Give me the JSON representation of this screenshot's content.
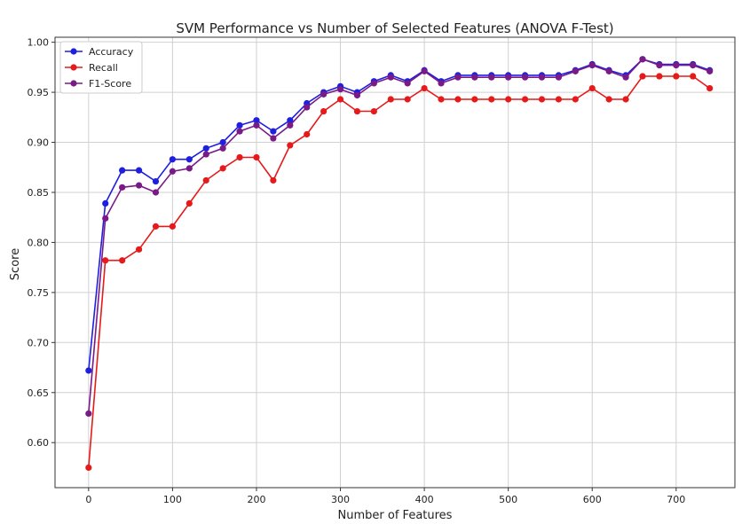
{
  "chart_data": {
    "type": "line",
    "title": "SVM Performance vs Number of Selected Features (ANOVA F-Test)",
    "xlabel": "Number of Features",
    "ylabel": "Score",
    "xlim": [
      -40,
      770
    ],
    "ylim": [
      0.555,
      1.005
    ],
    "xticks": [
      0,
      100,
      200,
      300,
      400,
      500,
      600,
      700
    ],
    "yticks": [
      0.6,
      0.65,
      0.7,
      0.75,
      0.8,
      0.85,
      0.9,
      0.95,
      1.0
    ],
    "xtick_labels": [
      "0",
      "100",
      "200",
      "300",
      "400",
      "500",
      "600",
      "700"
    ],
    "ytick_labels": [
      "0.60",
      "0.65",
      "0.70",
      "0.75",
      "0.80",
      "0.85",
      "0.90",
      "0.95",
      "1.00"
    ],
    "grid": true,
    "legend_position": "top-left",
    "x": [
      0,
      20,
      40,
      60,
      80,
      100,
      120,
      140,
      160,
      180,
      200,
      220,
      240,
      260,
      280,
      300,
      320,
      340,
      360,
      380,
      400,
      420,
      440,
      460,
      480,
      500,
      520,
      540,
      560,
      580,
      600,
      620,
      640,
      660,
      680,
      700,
      720,
      740
    ],
    "series": [
      {
        "name": "Accuracy",
        "color": "#1f1fe0",
        "values": [
          0.672,
          0.839,
          0.872,
          0.872,
          0.861,
          0.883,
          0.883,
          0.894,
          0.9,
          0.917,
          0.922,
          0.911,
          0.922,
          0.939,
          0.95,
          0.956,
          0.95,
          0.961,
          0.967,
          0.961,
          0.972,
          0.961,
          0.967,
          0.967,
          0.967,
          0.967,
          0.967,
          0.967,
          0.967,
          0.972,
          0.978,
          0.972,
          0.967,
          0.983,
          0.978,
          0.978,
          0.978,
          0.972
        ]
      },
      {
        "name": "Recall",
        "color": "#e61a1a",
        "values": [
          0.575,
          0.782,
          0.782,
          0.793,
          0.816,
          0.816,
          0.839,
          0.862,
          0.874,
          0.885,
          0.885,
          0.862,
          0.897,
          0.908,
          0.931,
          0.943,
          0.931,
          0.931,
          0.943,
          0.943,
          0.954,
          0.943,
          0.943,
          0.943,
          0.943,
          0.943,
          0.943,
          0.943,
          0.943,
          0.943,
          0.954,
          0.943,
          0.943,
          0.966,
          0.966,
          0.966,
          0.966,
          0.954
        ]
      },
      {
        "name": "F1-Score",
        "color": "#7a1a86",
        "values": [
          0.629,
          0.824,
          0.855,
          0.857,
          0.85,
          0.871,
          0.874,
          0.888,
          0.894,
          0.911,
          0.917,
          0.904,
          0.917,
          0.935,
          0.948,
          0.953,
          0.947,
          0.959,
          0.965,
          0.959,
          0.971,
          0.959,
          0.965,
          0.965,
          0.965,
          0.965,
          0.965,
          0.965,
          0.965,
          0.971,
          0.977,
          0.971,
          0.965,
          0.983,
          0.977,
          0.977,
          0.977,
          0.971
        ]
      }
    ]
  }
}
